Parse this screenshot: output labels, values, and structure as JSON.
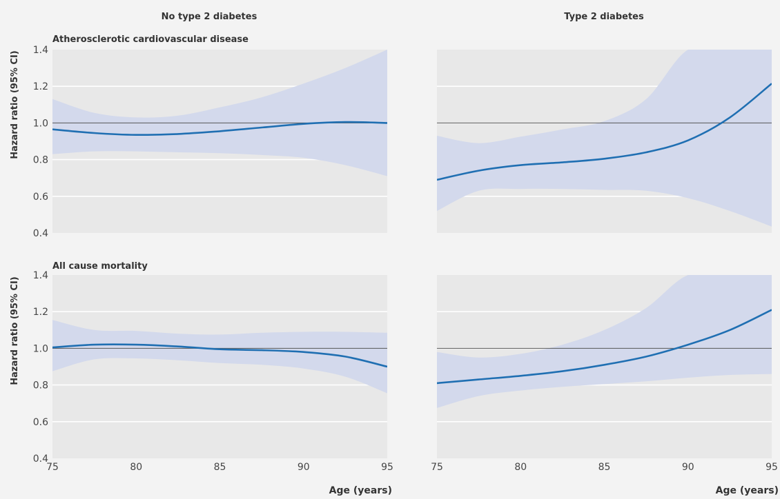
{
  "chart_data": {
    "type": "line",
    "columns": [
      "No type 2 diabetes",
      "Type 2 diabetes"
    ],
    "rows": [
      "Atherosclerotic cardiovascular disease",
      "All cause mortality"
    ],
    "ylabel": "Hazard ratio (95% CI)",
    "xlabel": "Age (years)",
    "xlim": [
      75,
      95
    ],
    "ylim": [
      0.4,
      1.4
    ],
    "x_ticks": [
      "75",
      "80",
      "85",
      "90",
      "95"
    ],
    "y_ticks": [
      "0.4",
      "0.6",
      "0.8",
      "1.0",
      "1.2",
      "1.4"
    ],
    "reference_line": 1.0,
    "colors": {
      "line": "#1f6fb2",
      "band": "#d3d9ec",
      "panel_bg": "#e8e8e8",
      "reference": "#555555"
    },
    "panels": [
      {
        "row": 0,
        "col": 0,
        "x": [
          75,
          77.5,
          80,
          82.5,
          85,
          87.5,
          90,
          92.5,
          95
        ],
        "hr": [
          0.965,
          0.945,
          0.935,
          0.94,
          0.955,
          0.975,
          0.995,
          1.005,
          1.0
        ],
        "lower": [
          0.83,
          0.845,
          0.845,
          0.84,
          0.835,
          0.825,
          0.81,
          0.77,
          0.71
        ],
        "upper": [
          1.13,
          1.055,
          1.03,
          1.04,
          1.085,
          1.14,
          1.215,
          1.3,
          1.4
        ]
      },
      {
        "row": 0,
        "col": 1,
        "x": [
          75,
          77.5,
          80,
          82.5,
          85,
          87.5,
          90,
          92.5,
          95
        ],
        "hr": [
          0.69,
          0.74,
          0.77,
          0.785,
          0.805,
          0.84,
          0.905,
          1.03,
          1.215
        ],
        "lower": [
          0.52,
          0.63,
          0.64,
          0.64,
          0.635,
          0.63,
          0.59,
          0.52,
          0.435
        ],
        "upper": [
          0.93,
          0.89,
          0.925,
          0.965,
          1.01,
          1.13,
          1.4,
          1.4,
          1.4
        ]
      },
      {
        "row": 1,
        "col": 0,
        "x": [
          75,
          77.5,
          80,
          82.5,
          85,
          87.5,
          90,
          92.5,
          95
        ],
        "hr": [
          1.005,
          1.02,
          1.02,
          1.01,
          0.995,
          0.99,
          0.98,
          0.955,
          0.9
        ],
        "lower": [
          0.875,
          0.94,
          0.945,
          0.935,
          0.92,
          0.91,
          0.89,
          0.845,
          0.755
        ],
        "upper": [
          1.155,
          1.1,
          1.095,
          1.08,
          1.075,
          1.085,
          1.09,
          1.09,
          1.085
        ]
      },
      {
        "row": 1,
        "col": 1,
        "x": [
          75,
          77.5,
          80,
          82.5,
          85,
          87.5,
          90,
          92.5,
          95
        ],
        "hr": [
          0.81,
          0.83,
          0.85,
          0.875,
          0.91,
          0.955,
          1.02,
          1.1,
          1.21
        ],
        "lower": [
          0.675,
          0.74,
          0.77,
          0.79,
          0.805,
          0.82,
          0.84,
          0.855,
          0.86
        ],
        "upper": [
          0.98,
          0.95,
          0.97,
          1.02,
          1.1,
          1.22,
          1.4,
          1.4,
          1.4
        ]
      }
    ]
  }
}
